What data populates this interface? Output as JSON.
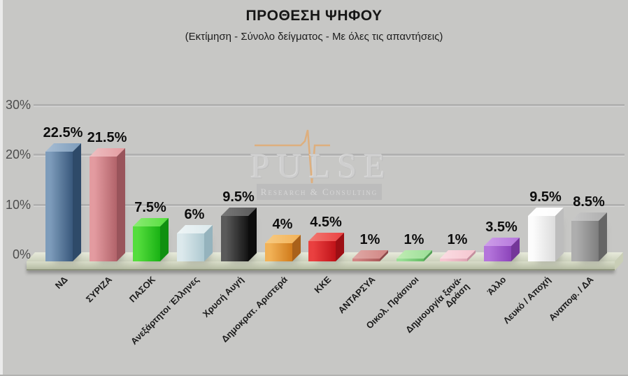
{
  "title": "ΠΡΟΘΕΣΗ ΨΗΦΟΥ",
  "subtitle": "(Εκτίμηση - Σύνολο δείγματος - Με όλες τις απαντήσεις)",
  "watermark": {
    "brand": "PULSE",
    "tagline": "Research & Consulting",
    "band_color": "#bcbcbc",
    "text_color": "#d7d7d7",
    "ecg_color": "#e3a96b"
  },
  "y_axis": {
    "tick_labels": [
      "30%",
      "20%",
      "10%",
      "0%"
    ]
  },
  "chart_data": {
    "type": "bar",
    "title": "ΠΡΟΘΕΣΗ ΨΗΦΟΥ",
    "subtitle": "(Εκτίμηση - Σύνολο δείγματος - Με όλες τις απαντήσεις)",
    "xlabel": "",
    "ylabel": "",
    "ylim": [
      0,
      30
    ],
    "yticks": [
      0,
      10,
      20,
      30
    ],
    "ytick_labels": [
      "0%",
      "10%",
      "20%",
      "30%"
    ],
    "grid": true,
    "legend": false,
    "style": "3d-bars",
    "categories": [
      "ΝΔ",
      "ΣΥΡΙΖΑ",
      "ΠΑΣΟΚ",
      "Ανεξάρτητοι Έλληνες",
      "Χρυσή Αυγή",
      "Δημοκρατ. Αριστερά",
      "ΚΚΕ",
      "ΑΝΤΑΡΣΥΑ",
      "Οικολ. Πράσινοι",
      "Δημιουργία ξανά-Δράση",
      "Άλλο",
      "Λευκό / Αποχή",
      "Αναποφ. / ΔΑ"
    ],
    "category_lines": [
      [
        "ΝΔ"
      ],
      [
        "ΣΥΡΙΖΑ"
      ],
      [
        "ΠΑΣΟΚ"
      ],
      [
        "Ανεξάρτητοι Έλληνες"
      ],
      [
        "Χρυσή Αυγή"
      ],
      [
        "Δημοκρατ. Αριστερά"
      ],
      [
        "ΚΚΕ"
      ],
      [
        "ΑΝΤΑΡΣΥΑ"
      ],
      [
        "Οικολ. Πράσινοι"
      ],
      [
        "Δημιουργία ξανά-",
        "Δράση"
      ],
      [
        "Άλλο"
      ],
      [
        "Λευκό / Αποχή"
      ],
      [
        "Αναποφ. / ΔΑ"
      ]
    ],
    "values": [
      22.5,
      21.5,
      7.5,
      6,
      9.5,
      4,
      4.5,
      1,
      1,
      1,
      3.5,
      9.5,
      8.5
    ],
    "value_labels": [
      "22.5%",
      "21.5%",
      "7.5%",
      "6%",
      "9.5%",
      "4%",
      "4.5%",
      "1%",
      "1%",
      "1%",
      "3.5%",
      "9.5%",
      "8.5%"
    ],
    "bar_colors": [
      {
        "name": "steel-blue",
        "front_light": "#7d9cbb",
        "front_dark": "#39587c",
        "top": "#a8bed4",
        "side": "#2e4a69"
      },
      {
        "name": "dusty-rose",
        "front_light": "#e39ba0",
        "front_dark": "#b2636a",
        "top": "#eec0c2",
        "side": "#99545b"
      },
      {
        "name": "green",
        "front_light": "#55dd3d",
        "front_dark": "#19b214",
        "top": "#8cec74",
        "side": "#109010"
      },
      {
        "name": "pale-blue",
        "front_light": "#dce9ec",
        "front_dark": "#aec9d1",
        "top": "#eef5f6",
        "side": "#95b3bd"
      },
      {
        "name": "black",
        "front_light": "#5a5a5a",
        "front_dark": "#131313",
        "top": "#787878",
        "side": "#0c0c0c"
      },
      {
        "name": "orange",
        "front_light": "#f2b257",
        "front_dark": "#d07b1b",
        "top": "#f7cb84",
        "side": "#a9611a"
      },
      {
        "name": "red",
        "front_light": "#ea4040",
        "front_dark": "#c01218",
        "top": "#f27b74",
        "side": "#9d0f14"
      },
      {
        "name": "dark-rose",
        "front_light": "#d18583",
        "front_dark": "#aa5a59",
        "top": "#e0a9a6",
        "side": "#8e4a4b"
      },
      {
        "name": "light-green",
        "front_light": "#9ade96",
        "front_dark": "#62bb62",
        "top": "#c0ecb4",
        "side": "#52a055"
      },
      {
        "name": "light-pink",
        "front_light": "#f5c6d0",
        "front_dark": "#dea6b4",
        "top": "#fbdde3",
        "side": "#c58f9e"
      },
      {
        "name": "purple",
        "front_light": "#b475db",
        "front_dark": "#8c44ba",
        "top": "#ce9fe9",
        "side": "#743699"
      },
      {
        "name": "white",
        "front_light": "#fcfcfc",
        "front_dark": "#dcdcdc",
        "top": "#ffffff",
        "side": "#bdbdbd"
      },
      {
        "name": "gray",
        "front_light": "#aeaeae",
        "front_dark": "#7e7e7e",
        "top": "#c8c8c8",
        "side": "#656565"
      }
    ]
  }
}
